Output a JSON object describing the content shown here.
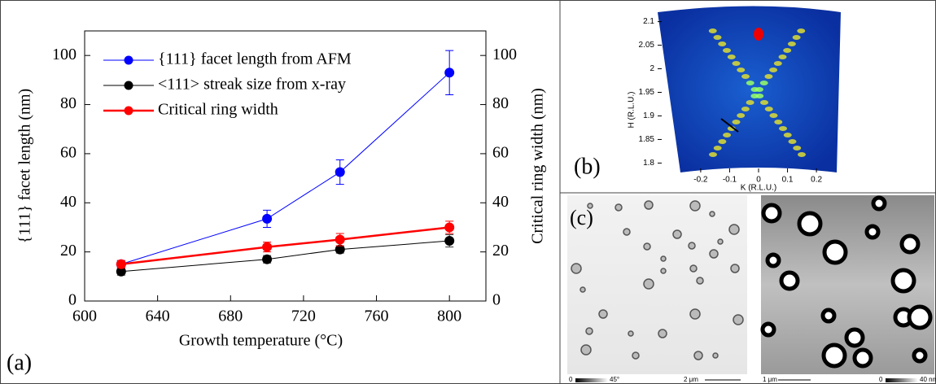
{
  "chart_data": [
    {
      "type": "line",
      "panel_label": "(a)",
      "xlabel": "Growth temperature (°C)",
      "ylabel": "{111} facet length (nm)",
      "y2label": "Critical ring width (nm)",
      "x": [
        620,
        700,
        740,
        800
      ],
      "xlim": [
        600,
        820
      ],
      "xticks": [
        600,
        640,
        680,
        720,
        760,
        800
      ],
      "ylim": [
        0,
        110
      ],
      "yticks": [
        0,
        20,
        40,
        60,
        80,
        100
      ],
      "y2lim": [
        0,
        110
      ],
      "y2ticks": [
        0,
        20,
        40,
        60,
        80,
        100
      ],
      "series": [
        {
          "name": "{111} facet length from AFM",
          "color": "#0000ff",
          "values": [
            15,
            33.5,
            52.5,
            93
          ],
          "errors": [
            1.5,
            3.5,
            5,
            9
          ]
        },
        {
          "name": "<111> streak size from x-ray",
          "color": "#000000",
          "values": [
            12,
            17,
            21,
            24.5
          ],
          "errors": [
            1.5,
            1.5,
            1.5,
            2.5
          ]
        },
        {
          "name": "Critical ring width",
          "color": "#ff0000",
          "axis": "y2",
          "values": [
            15,
            22,
            25,
            30
          ],
          "errors": [
            1.5,
            2,
            2.5,
            2.5
          ]
        }
      ]
    },
    {
      "type": "image",
      "panel_label": "(b)",
      "xlabel": "K (R.L.U.)",
      "ylabel": "H (R.L.U.)",
      "xlim": [
        -0.27,
        0.27
      ],
      "xticks": [
        -0.2,
        -0.1,
        0,
        0.1,
        0.2
      ],
      "ylim": [
        1.78,
        2.12
      ],
      "yticks": [
        1.8,
        1.85,
        1.9,
        1.95,
        2,
        2.05,
        2.1
      ]
    }
  ],
  "panel_c": {
    "label": "(c)",
    "left": {
      "scale_min": 0,
      "scale_max": "45°",
      "bar": "2 μm"
    },
    "right": {
      "bar": "1 μm",
      "scale_min": 0,
      "scale_max": "40 nm"
    }
  }
}
